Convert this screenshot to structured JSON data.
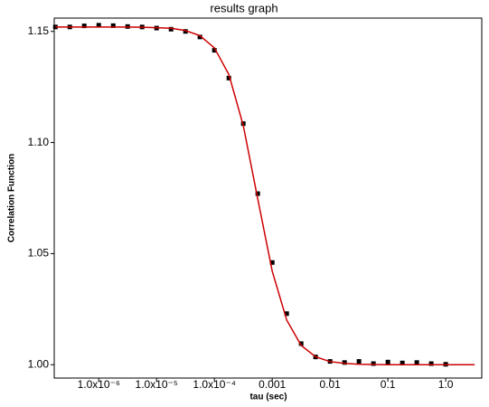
{
  "chart_data": {
    "type": "scatter",
    "title": "results graph",
    "x_label": "tau (sec)",
    "y_label": "Correlation Function",
    "x_scale": "log",
    "grid": false,
    "xlim": [
      1.7e-07,
      4.2
    ],
    "ylim": [
      0.994,
      1.156
    ],
    "xticks": [
      {
        "value": 1e-06,
        "label": "1.0x10⁻⁶"
      },
      {
        "value": 1e-05,
        "label": "1.0x10⁻⁵"
      },
      {
        "value": 0.0001,
        "label": "1.0x10⁻⁴"
      },
      0.001,
      0.01,
      0.1,
      {
        "value": 1,
        "label": "1.0"
      }
    ],
    "yticks": [
      {
        "value": 1,
        "label": "1.00"
      },
      1.05,
      {
        "value": 1.1,
        "label": "1.10"
      },
      1.15
    ],
    "x": [
      1.78e-07,
      3.16e-07,
      5.62e-07,
      1e-06,
      1.78e-06,
      3.16e-06,
      5.62e-06,
      1e-05,
      1.78e-05,
      3.16e-05,
      5.62e-05,
      0.0001,
      0.000178,
      0.000316,
      0.000562,
      0.001,
      0.00178,
      0.00316,
      0.00562,
      0.01,
      0.0178,
      0.0316,
      0.0562,
      0.1,
      0.178,
      0.316,
      0.562,
      1.0,
      1.78,
      3.16
    ],
    "series": [
      {
        "type": "scatter",
        "color": "#000000",
        "values": [
          1.152,
          1.152,
          1.1525,
          1.1528,
          1.1526,
          1.1522,
          1.152,
          1.1515,
          1.151,
          1.15,
          1.1475,
          1.1415,
          1.129,
          1.1085,
          1.077,
          1.046,
          1.023,
          1.0095,
          1.0035,
          1.0015,
          1.001,
          1.0015,
          1.0005,
          1.0012,
          1.0008,
          1.001,
          1.0005,
          1.0002,
          null,
          null
        ]
      },
      {
        "type": "line",
        "color": "#cc0000",
        "values": [
          1.152,
          1.152,
          1.152,
          1.152,
          1.152,
          1.152,
          1.1519,
          1.1517,
          1.1514,
          1.1504,
          1.1481,
          1.1426,
          1.1306,
          1.1076,
          1.0746,
          1.0421,
          1.0201,
          1.0087,
          1.0036,
          1.0014,
          1.0006,
          1.0002,
          1.0001,
          1.0,
          1.0,
          1.0,
          1.0,
          1.0,
          1.0,
          1.0
        ]
      }
    ]
  }
}
